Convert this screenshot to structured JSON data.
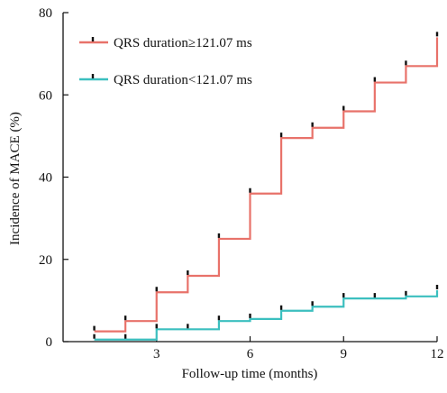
{
  "chart_data": {
    "type": "line",
    "step": true,
    "xlabel": "Follow-up time (months)",
    "ylabel": "Incidence of MACE (%)",
    "xlim": [
      0,
      12
    ],
    "ylim": [
      0,
      80
    ],
    "x_ticks": [
      3,
      6,
      9,
      12
    ],
    "y_ticks": [
      0,
      20,
      40,
      60,
      80
    ],
    "grid": false,
    "legend_position": "top-left",
    "series": [
      {
        "name": "QRS duration≥121.07 ms",
        "color": "#e8726a",
        "x": [
          1,
          2,
          3,
          4,
          5,
          6,
          7,
          8,
          9,
          10,
          11,
          12
        ],
        "y": [
          2.5,
          5,
          12,
          16,
          25,
          36,
          49.5,
          52,
          56,
          63,
          67,
          74
        ]
      },
      {
        "name": "QRS duration<121.07 ms",
        "color": "#3bbfbf",
        "x": [
          1,
          2,
          3,
          4,
          5,
          6,
          7,
          8,
          9,
          10,
          11,
          12
        ],
        "y": [
          0.5,
          0.5,
          3,
          3,
          5,
          5.5,
          7.5,
          8.5,
          10.5,
          10.5,
          11,
          12.5
        ]
      }
    ]
  }
}
